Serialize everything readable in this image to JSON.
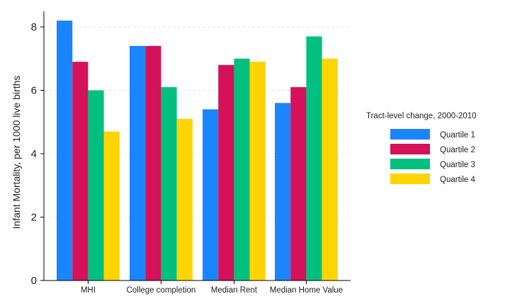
{
  "chart_data": {
    "type": "bar",
    "categories": [
      "MHI",
      "College completion",
      "Median Rent",
      "Median Home Value"
    ],
    "series": [
      {
        "name": "Quartile 1",
        "color": "#1a85ff",
        "values": [
          8.2,
          7.4,
          5.4,
          5.6
        ]
      },
      {
        "name": "Quartile 2",
        "color": "#d41159",
        "values": [
          6.9,
          7.4,
          6.8,
          6.1
        ]
      },
      {
        "name": "Quartile 3",
        "color": "#00c07f",
        "values": [
          6.0,
          6.1,
          7.0,
          7.7
        ]
      },
      {
        "name": "Quartile 4",
        "color": "#ffd400",
        "values": [
          4.7,
          5.1,
          6.9,
          7.0
        ]
      }
    ],
    "ylabel": "Infant Mortality, per 1000 live births",
    "xlabel": "",
    "ylim": [
      0,
      8.5
    ],
    "yticks": [
      0,
      2,
      4,
      6,
      8
    ],
    "grid": true,
    "legend_title": "Tract-level change, 2000-2010",
    "legend_position": "right"
  }
}
